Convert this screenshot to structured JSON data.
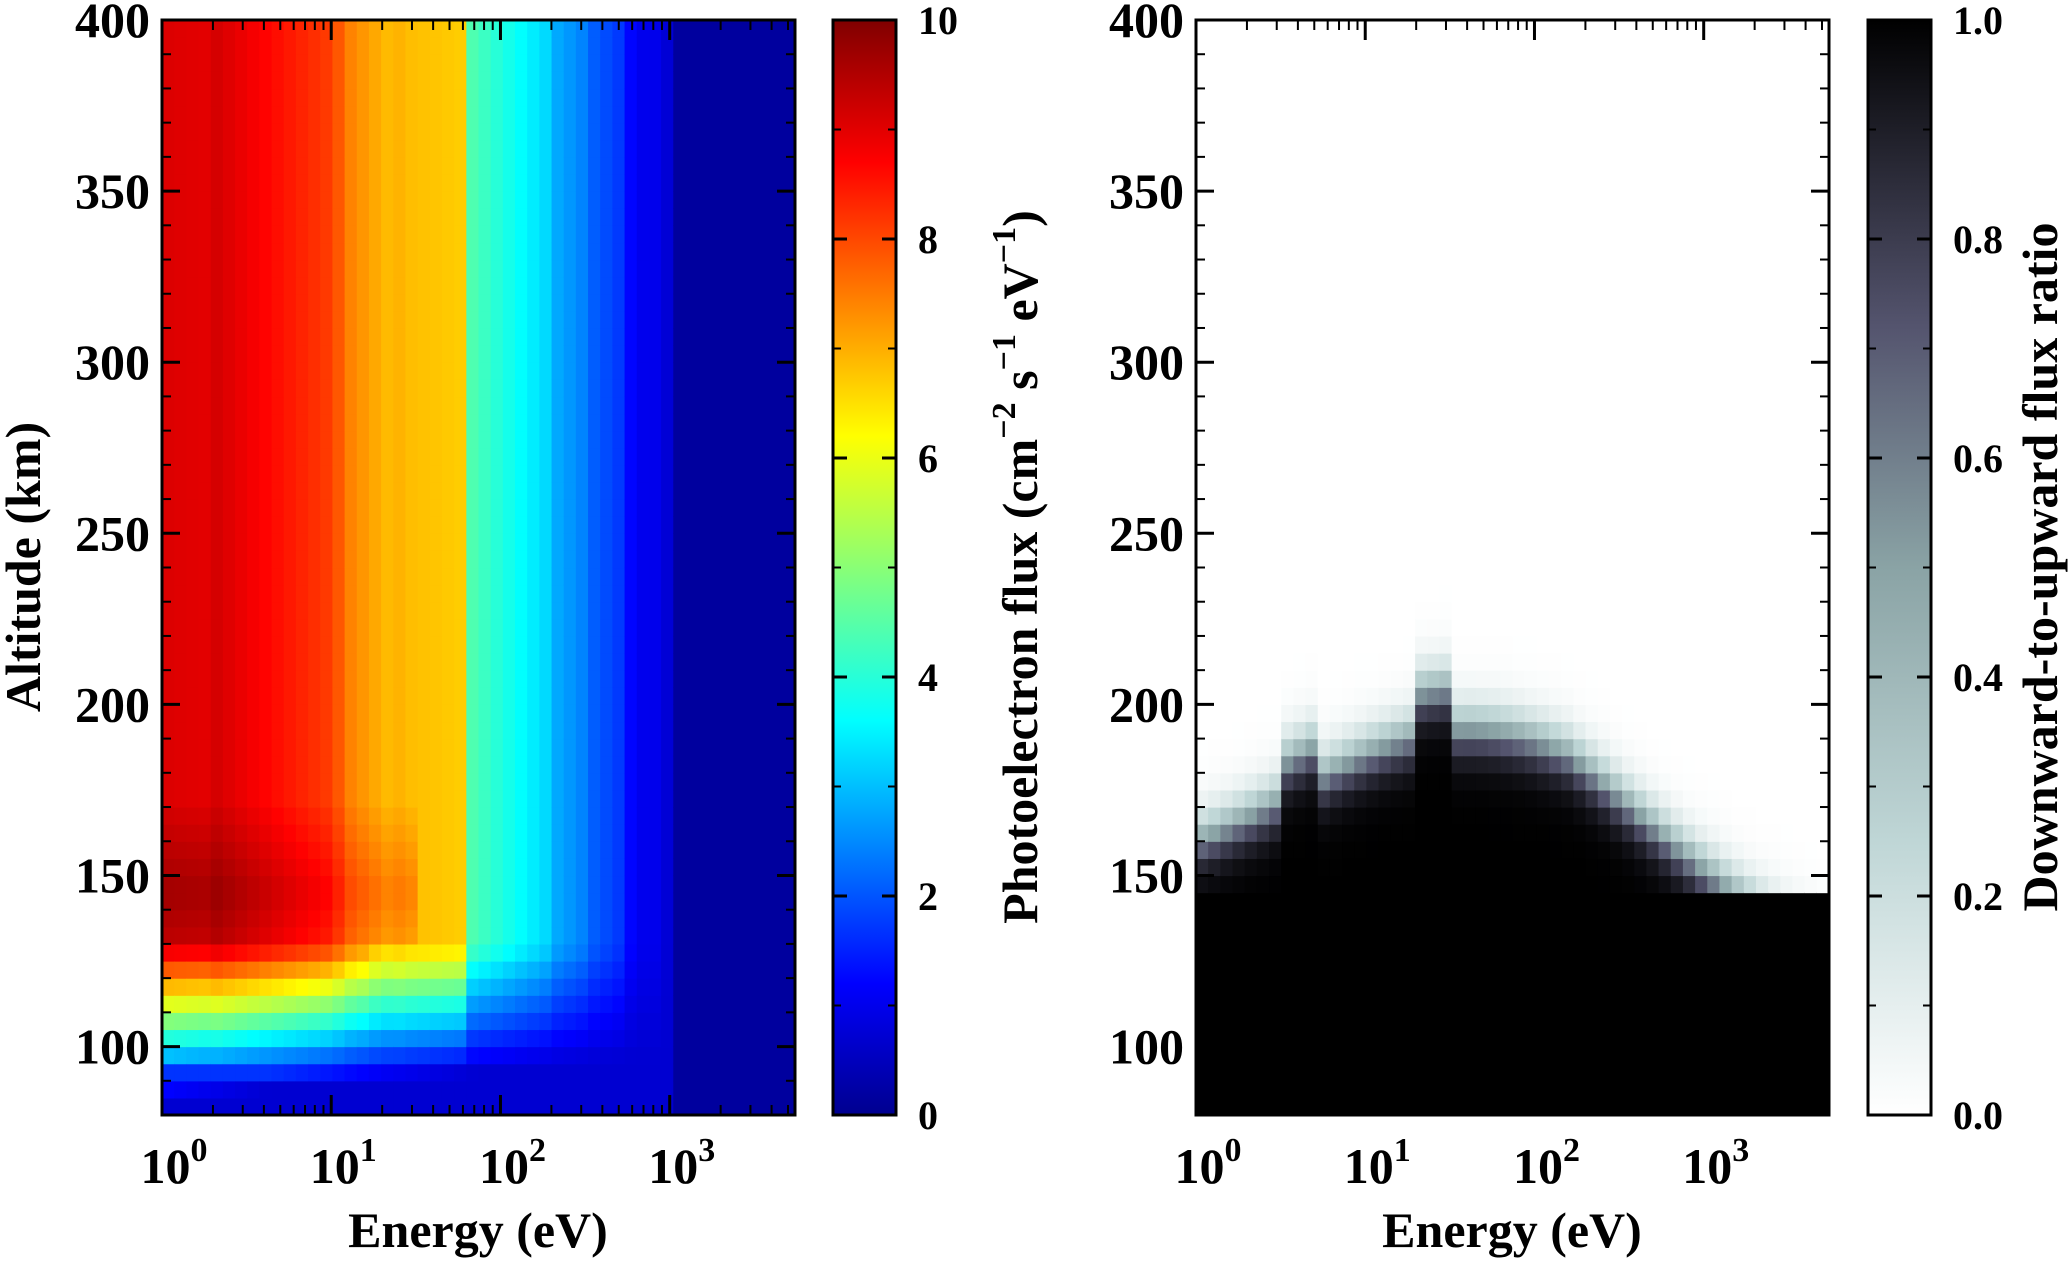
{
  "chart_data": [
    {
      "type": "heatmap",
      "xlabel": "Energy (eV)",
      "ylabel": "Altitude (km)",
      "x_scale": "log",
      "xlim": [
        1,
        5500
      ],
      "ylim": [
        80,
        400
      ],
      "x_ticks": [
        {
          "base": "10",
          "exp": "0"
        },
        {
          "base": "10",
          "exp": "1"
        },
        {
          "base": "10",
          "exp": "2"
        },
        {
          "base": "10",
          "exp": "3"
        }
      ],
      "y_ticks": [
        "100",
        "150",
        "200",
        "250",
        "300",
        "350",
        "400"
      ],
      "colormap": "jet",
      "colorbar": {
        "label_main": "Photoelectron flux (cm",
        "label_sup1": "−2",
        "label_mid1": " s",
        "label_sup2": "−1",
        "label_mid2": " eV",
        "label_sup3": "−1",
        "label_end": ")",
        "range": [
          0,
          10
        ],
        "ticks": [
          "0",
          "2",
          "4",
          "6",
          "8",
          "10"
        ]
      },
      "description_values": {
        "max_value": 10,
        "peak_altitude_km": 145,
        "upper_energy_cutoff_eV": 1000
      }
    },
    {
      "type": "heatmap",
      "xlabel": "Energy (eV)",
      "ylabel": "",
      "x_scale": "log",
      "xlim": [
        1,
        5500
      ],
      "ylim": [
        80,
        400
      ],
      "x_ticks": [
        {
          "base": "10",
          "exp": "0"
        },
        {
          "base": "10",
          "exp": "1"
        },
        {
          "base": "10",
          "exp": "2"
        },
        {
          "base": "10",
          "exp": "3"
        }
      ],
      "y_ticks": [
        "100",
        "150",
        "200",
        "250",
        "300",
        "350",
        "400"
      ],
      "colormap": "bone_r",
      "colorbar": {
        "label": "Downward-to-upward flux ratio",
        "range": [
          0,
          1
        ],
        "ticks": [
          "0.0",
          "0.2",
          "0.4",
          "0.6",
          "0.8",
          "1.0"
        ]
      },
      "description_values": {
        "saturation_altitude_km": 145,
        "transition_top_km": 200
      }
    }
  ]
}
